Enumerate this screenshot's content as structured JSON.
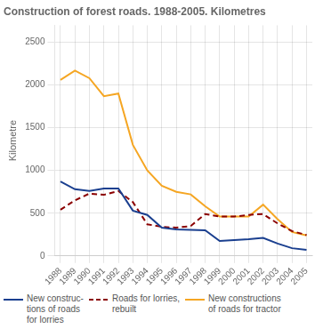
{
  "chart_data": {
    "type": "line",
    "title": "Construction of forest roads. 1988-2005. Kilometres",
    "ylabel": "Kilometre",
    "x": [
      1988,
      1989,
      1990,
      1991,
      1992,
      1993,
      1994,
      1995,
      1996,
      1997,
      1998,
      1999,
      2000,
      2001,
      2002,
      2003,
      2004,
      2005
    ],
    "series": [
      {
        "name": "New construc-\ntions of roads\nfor lorries",
        "color": "#1a3f8f",
        "line_style": "solid",
        "values": [
          870,
          780,
          760,
          790,
          790,
          530,
          480,
          330,
          310,
          305,
          300,
          175,
          185,
          195,
          210,
          145,
          90,
          70
        ]
      },
      {
        "name": "Roads for lorries,\nrebuilt",
        "color": "#8b0000",
        "line_style": "dashed",
        "values": [
          540,
          650,
          730,
          715,
          760,
          630,
          370,
          340,
          330,
          350,
          490,
          460,
          460,
          480,
          490,
          380,
          290,
          245
        ]
      },
      {
        "name": "New constructions\nof roads for tractor",
        "color": "#f5a623",
        "line_style": "solid",
        "values": [
          2060,
          2170,
          2080,
          1870,
          1900,
          1300,
          1000,
          820,
          750,
          720,
          580,
          460,
          460,
          460,
          600,
          430,
          280,
          240
        ]
      }
    ],
    "xlim": [
      1987.6,
      2005.4
    ],
    "xticks": [
      1988,
      1989,
      1990,
      1991,
      1992,
      1993,
      1994,
      1995,
      1996,
      1997,
      1998,
      1999,
      2000,
      2001,
      2002,
      2003,
      2004,
      2005
    ],
    "ylim": [
      0,
      2700
    ],
    "yticks": [
      0,
      500,
      1000,
      1500,
      2000,
      2500
    ],
    "grid": true,
    "legend": "bottom"
  }
}
